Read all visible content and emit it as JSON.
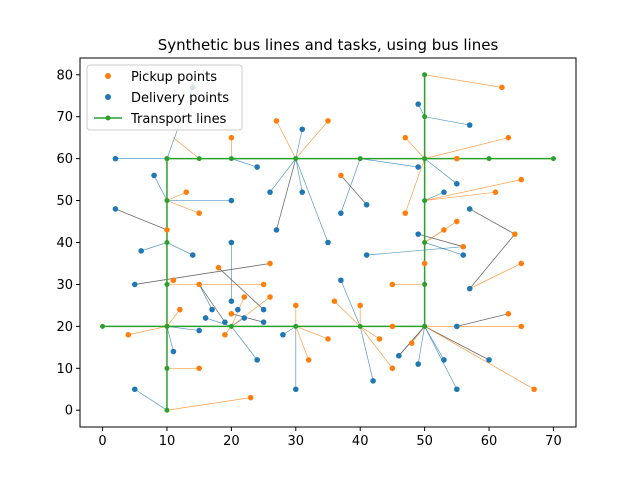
{
  "chart_data": {
    "type": "scatter",
    "title": "Synthetic bus lines and tasks, using bus lines",
    "xlabel": "",
    "ylabel": "",
    "xlim": [
      -3.5,
      73.5
    ],
    "ylim": [
      -4,
      84
    ],
    "xticks": [
      0,
      10,
      20,
      30,
      40,
      50,
      60,
      70
    ],
    "yticks": [
      0,
      10,
      20,
      30,
      40,
      50,
      60,
      70,
      80
    ],
    "legend": {
      "placement": "top-left",
      "entries": [
        "Pickup points",
        "Delivery points",
        "Transport lines"
      ]
    },
    "colors": {
      "pickup": "#ff7f0e",
      "delivery": "#1f77b4",
      "transport": "#2ca02c",
      "connector_pickup": "#ff7f0e",
      "connector_delivery": "#1f77b4",
      "connector_gray": "#555555"
    },
    "transport_lines": [
      {
        "name": "horizontal-y60",
        "points": [
          [
            10,
            60
          ],
          [
            15,
            60
          ],
          [
            20,
            60
          ],
          [
            30,
            60
          ],
          [
            40,
            60
          ],
          [
            50,
            60
          ],
          [
            60,
            60
          ],
          [
            70,
            60
          ]
        ]
      },
      {
        "name": "horizontal-y20",
        "points": [
          [
            0,
            20
          ],
          [
            10,
            20
          ],
          [
            20,
            20
          ],
          [
            30,
            20
          ],
          [
            40,
            20
          ],
          [
            50,
            20
          ]
        ]
      },
      {
        "name": "vertical-x10",
        "points": [
          [
            10,
            0
          ],
          [
            10,
            10
          ],
          [
            10,
            20
          ],
          [
            10,
            30
          ],
          [
            10,
            40
          ],
          [
            10,
            50
          ],
          [
            10,
            60
          ]
        ]
      },
      {
        "name": "vertical-x50",
        "points": [
          [
            50,
            20
          ],
          [
            50,
            30
          ],
          [
            50,
            35
          ],
          [
            50,
            40
          ],
          [
            50,
            50
          ],
          [
            50,
            60
          ],
          [
            50,
            70
          ],
          [
            50,
            80
          ]
        ]
      }
    ],
    "pickup_points": [
      [
        20,
        65
      ],
      [
        27,
        69
      ],
      [
        35,
        69
      ],
      [
        62,
        77
      ],
      [
        63,
        65
      ],
      [
        47,
        65
      ],
      [
        55,
        60
      ],
      [
        37,
        56
      ],
      [
        13,
        52
      ],
      [
        15,
        47
      ],
      [
        47,
        47
      ],
      [
        61,
        52
      ],
      [
        65,
        55
      ],
      [
        10,
        43
      ],
      [
        53,
        43
      ],
      [
        55,
        45
      ],
      [
        64,
        42
      ],
      [
        56,
        39
      ],
      [
        18,
        34
      ],
      [
        26,
        35
      ],
      [
        11,
        31
      ],
      [
        15,
        30
      ],
      [
        25,
        30
      ],
      [
        26,
        27
      ],
      [
        22,
        27
      ],
      [
        20,
        23
      ],
      [
        12,
        24
      ],
      [
        19,
        18
      ],
      [
        36,
        26
      ],
      [
        40,
        25
      ],
      [
        45,
        30
      ],
      [
        30,
        25
      ],
      [
        45,
        20
      ],
      [
        43,
        17
      ],
      [
        35,
        17
      ],
      [
        32,
        12
      ],
      [
        45,
        10
      ],
      [
        48,
        16
      ],
      [
        63,
        23
      ],
      [
        65,
        20
      ],
      [
        67,
        5
      ],
      [
        65,
        35
      ],
      [
        4,
        18
      ],
      [
        15,
        10
      ],
      [
        23,
        3
      ],
      [
        50,
        35
      ]
    ],
    "delivery_points": [
      [
        14,
        77
      ],
      [
        2,
        60
      ],
      [
        24,
        58
      ],
      [
        31,
        67
      ],
      [
        57,
        68
      ],
      [
        49,
        73
      ],
      [
        49,
        58
      ],
      [
        8,
        56
      ],
      [
        26,
        52
      ],
      [
        31,
        52
      ],
      [
        37,
        47
      ],
      [
        41,
        49
      ],
      [
        20,
        50
      ],
      [
        27,
        43
      ],
      [
        35,
        40
      ],
      [
        2,
        48
      ],
      [
        55,
        54
      ],
      [
        53,
        52
      ],
      [
        49,
        42
      ],
      [
        56,
        37
      ],
      [
        41,
        37
      ],
      [
        6,
        38
      ],
      [
        14,
        37
      ],
      [
        20,
        40
      ],
      [
        57,
        48
      ],
      [
        57,
        29
      ],
      [
        5,
        30
      ],
      [
        37,
        31
      ],
      [
        20,
        26
      ],
      [
        17,
        24
      ],
      [
        19,
        21
      ],
      [
        21,
        24
      ],
      [
        22,
        22
      ],
      [
        25,
        24
      ],
      [
        25,
        21
      ],
      [
        16,
        22
      ],
      [
        15,
        19
      ],
      [
        11,
        14
      ],
      [
        24,
        12
      ],
      [
        28,
        18
      ],
      [
        30,
        5
      ],
      [
        42,
        7
      ],
      [
        46,
        13
      ],
      [
        49,
        11
      ],
      [
        53,
        12
      ],
      [
        55,
        5
      ],
      [
        55,
        20
      ],
      [
        60,
        12
      ],
      [
        5,
        5
      ]
    ],
    "connectors": [
      {
        "from": [
          10,
          60
        ],
        "to": [
          14,
          77
        ],
        "color": "delivery"
      },
      {
        "from": [
          10,
          60
        ],
        "to": [
          2,
          60
        ],
        "color": "delivery"
      },
      {
        "from": [
          15,
          60
        ],
        "to": [
          11,
          65
        ],
        "color": "pickup"
      },
      {
        "from": [
          20,
          60
        ],
        "to": [
          20,
          65
        ],
        "color": "pickup"
      },
      {
        "from": [
          20,
          60
        ],
        "to": [
          24,
          58
        ],
        "color": "delivery"
      },
      {
        "from": [
          30,
          60
        ],
        "to": [
          27,
          69
        ],
        "color": "pickup"
      },
      {
        "from": [
          30,
          60
        ],
        "to": [
          35,
          69
        ],
        "color": "pickup"
      },
      {
        "from": [
          30,
          60
        ],
        "to": [
          31,
          67
        ],
        "color": "delivery"
      },
      {
        "from": [
          30,
          60
        ],
        "to": [
          26,
          52
        ],
        "color": "delivery"
      },
      {
        "from": [
          30,
          60
        ],
        "to": [
          31,
          52
        ],
        "color": "delivery"
      },
      {
        "from": [
          30,
          60
        ],
        "to": [
          35,
          40
        ],
        "color": "delivery"
      },
      {
        "from": [
          30,
          60
        ],
        "to": [
          27,
          43
        ],
        "color": "gray"
      },
      {
        "from": [
          40,
          60
        ],
        "to": [
          37,
          47
        ],
        "color": "delivery"
      },
      {
        "from": [
          40,
          60
        ],
        "to": [
          49,
          58
        ],
        "color": "delivery"
      },
      {
        "from": [
          50,
          60
        ],
        "to": [
          47,
          65
        ],
        "color": "pickup"
      },
      {
        "from": [
          50,
          60
        ],
        "to": [
          55,
          60
        ],
        "color": "pickup"
      },
      {
        "from": [
          50,
          60
        ],
        "to": [
          55,
          54
        ],
        "color": "delivery"
      },
      {
        "from": [
          50,
          60
        ],
        "to": [
          47,
          47
        ],
        "color": "pickup"
      },
      {
        "from": [
          50,
          70
        ],
        "to": [
          57,
          68
        ],
        "color": "delivery"
      },
      {
        "from": [
          50,
          70
        ],
        "to": [
          49,
          73
        ],
        "color": "delivery"
      },
      {
        "from": [
          50,
          80
        ],
        "to": [
          62,
          77
        ],
        "color": "pickup"
      },
      {
        "from": [
          50,
          60
        ],
        "to": [
          63,
          65
        ],
        "color": "pickup"
      },
      {
        "from": [
          37,
          56
        ],
        "to": [
          41,
          49
        ],
        "color": "gray"
      },
      {
        "from": [
          10,
          50
        ],
        "to": [
          13,
          52
        ],
        "color": "pickup"
      },
      {
        "from": [
          10,
          50
        ],
        "to": [
          15,
          47
        ],
        "color": "pickup"
      },
      {
        "from": [
          10,
          50
        ],
        "to": [
          20,
          50
        ],
        "color": "delivery"
      },
      {
        "from": [
          10,
          50
        ],
        "to": [
          8,
          56
        ],
        "color": "delivery"
      },
      {
        "from": [
          50,
          50
        ],
        "to": [
          61,
          52
        ],
        "color": "pickup"
      },
      {
        "from": [
          50,
          50
        ],
        "to": [
          65,
          55
        ],
        "color": "pickup"
      },
      {
        "from": [
          50,
          50
        ],
        "to": [
          53,
          52
        ],
        "color": "delivery"
      },
      {
        "from": [
          50,
          40
        ],
        "to": [
          53,
          43
        ],
        "color": "pickup"
      },
      {
        "from": [
          50,
          40
        ],
        "to": [
          55,
          45
        ],
        "color": "pickup"
      },
      {
        "from": [
          50,
          40
        ],
        "to": [
          56,
          37
        ],
        "color": "delivery"
      },
      {
        "from": [
          49,
          42
        ],
        "to": [
          56,
          39
        ],
        "color": "gray"
      },
      {
        "from": [
          57,
          48
        ],
        "to": [
          64,
          42
        ],
        "color": "gray"
      },
      {
        "from": [
          64,
          42
        ],
        "to": [
          57,
          29
        ],
        "color": "gray"
      },
      {
        "from": [
          10,
          40
        ],
        "to": [
          14,
          37
        ],
        "color": "delivery"
      },
      {
        "from": [
          10,
          40
        ],
        "to": [
          6,
          38
        ],
        "color": "delivery"
      },
      {
        "from": [
          10,
          43
        ],
        "to": [
          2,
          48
        ],
        "color": "gray"
      },
      {
        "from": [
          20,
          40
        ],
        "to": [
          20,
          26
        ],
        "color": "delivery"
      },
      {
        "from": [
          10,
          30
        ],
        "to": [
          11,
          31
        ],
        "color": "pickup"
      },
      {
        "from": [
          10,
          30
        ],
        "to": [
          25,
          30
        ],
        "color": "pickup"
      },
      {
        "from": [
          5,
          30
        ],
        "to": [
          26,
          35
        ],
        "color": "gray"
      },
      {
        "from": [
          15,
          30
        ],
        "to": [
          17,
          24
        ],
        "color": "delivery"
      },
      {
        "from": [
          15,
          30
        ],
        "to": [
          19,
          21
        ],
        "color": "gray"
      },
      {
        "from": [
          18,
          34
        ],
        "to": [
          25,
          24
        ],
        "color": "gray"
      },
      {
        "from": [
          41,
          37
        ],
        "to": [
          56,
          39
        ],
        "color": "delivery"
      },
      {
        "from": [
          50,
          30
        ],
        "to": [
          45,
          30
        ],
        "color": "pickup"
      },
      {
        "from": [
          50,
          35
        ],
        "to": [
          50,
          35
        ],
        "color": "pickup"
      },
      {
        "from": [
          10,
          20
        ],
        "to": [
          4,
          18
        ],
        "color": "pickup"
      },
      {
        "from": [
          10,
          20
        ],
        "to": [
          12,
          24
        ],
        "color": "pickup"
      },
      {
        "from": [
          10,
          20
        ],
        "to": [
          11,
          14
        ],
        "color": "delivery"
      },
      {
        "from": [
          10,
          20
        ],
        "to": [
          15,
          19
        ],
        "color": "delivery"
      },
      {
        "from": [
          20,
          20
        ],
        "to": [
          16,
          22
        ],
        "color": "delivery"
      },
      {
        "from": [
          20,
          20
        ],
        "to": [
          19,
          18
        ],
        "color": "pickup"
      },
      {
        "from": [
          20,
          20
        ],
        "to": [
          22,
          22
        ],
        "color": "delivery"
      },
      {
        "from": [
          20,
          20
        ],
        "to": [
          24,
          12
        ],
        "color": "delivery"
      },
      {
        "from": [
          20,
          20
        ],
        "to": [
          26,
          27
        ],
        "color": "pickup"
      },
      {
        "from": [
          20,
          20
        ],
        "to": [
          22,
          27
        ],
        "color": "pickup"
      },
      {
        "from": [
          20,
          23
        ],
        "to": [
          25,
          21
        ],
        "color": "gray"
      },
      {
        "from": [
          30,
          20
        ],
        "to": [
          28,
          18
        ],
        "color": "delivery"
      },
      {
        "from": [
          30,
          20
        ],
        "to": [
          30,
          25
        ],
        "color": "pickup"
      },
      {
        "from": [
          30,
          20
        ],
        "to": [
          35,
          17
        ],
        "color": "pickup"
      },
      {
        "from": [
          30,
          20
        ],
        "to": [
          32,
          12
        ],
        "color": "pickup"
      },
      {
        "from": [
          30,
          20
        ],
        "to": [
          30,
          5
        ],
        "color": "delivery"
      },
      {
        "from": [
          40,
          20
        ],
        "to": [
          36,
          26
        ],
        "color": "pickup"
      },
      {
        "from": [
          40,
          20
        ],
        "to": [
          40,
          25
        ],
        "color": "pickup"
      },
      {
        "from": [
          40,
          20
        ],
        "to": [
          37,
          31
        ],
        "color": "delivery"
      },
      {
        "from": [
          40,
          20
        ],
        "to": [
          43,
          17
        ],
        "color": "pickup"
      },
      {
        "from": [
          40,
          20
        ],
        "to": [
          42,
          7
        ],
        "color": "delivery"
      },
      {
        "from": [
          40,
          20
        ],
        "to": [
          45,
          10
        ],
        "color": "pickup"
      },
      {
        "from": [
          40,
          20
        ],
        "to": [
          45,
          20
        ],
        "color": "pickup"
      },
      {
        "from": [
          50,
          20
        ],
        "to": [
          46,
          13
        ],
        "color": "delivery"
      },
      {
        "from": [
          50,
          20
        ],
        "to": [
          48,
          16
        ],
        "color": "pickup"
      },
      {
        "from": [
          50,
          20
        ],
        "to": [
          49,
          11
        ],
        "color": "delivery"
      },
      {
        "from": [
          50,
          20
        ],
        "to": [
          53,
          12
        ],
        "color": "delivery"
      },
      {
        "from": [
          50,
          20
        ],
        "to": [
          55,
          5
        ],
        "color": "delivery"
      },
      {
        "from": [
          50,
          20
        ],
        "to": [
          60,
          12
        ],
        "color": "gray"
      },
      {
        "from": [
          46,
          13
        ],
        "to": [
          50,
          20
        ],
        "color": "gray"
      },
      {
        "from": [
          55,
          20
        ],
        "to": [
          63,
          23
        ],
        "color": "gray"
      },
      {
        "from": [
          50,
          20
        ],
        "to": [
          65,
          20
        ],
        "color": "pickup"
      },
      {
        "from": [
          50,
          20
        ],
        "to": [
          67,
          5
        ],
        "color": "pickup"
      },
      {
        "from": [
          57,
          29
        ],
        "to": [
          65,
          35
        ],
        "color": "pickup"
      },
      {
        "from": [
          10,
          10
        ],
        "to": [
          15,
          10
        ],
        "color": "pickup"
      },
      {
        "from": [
          10,
          0
        ],
        "to": [
          23,
          3
        ],
        "color": "pickup"
      },
      {
        "from": [
          10,
          0
        ],
        "to": [
          5,
          5
        ],
        "color": "delivery"
      }
    ]
  }
}
